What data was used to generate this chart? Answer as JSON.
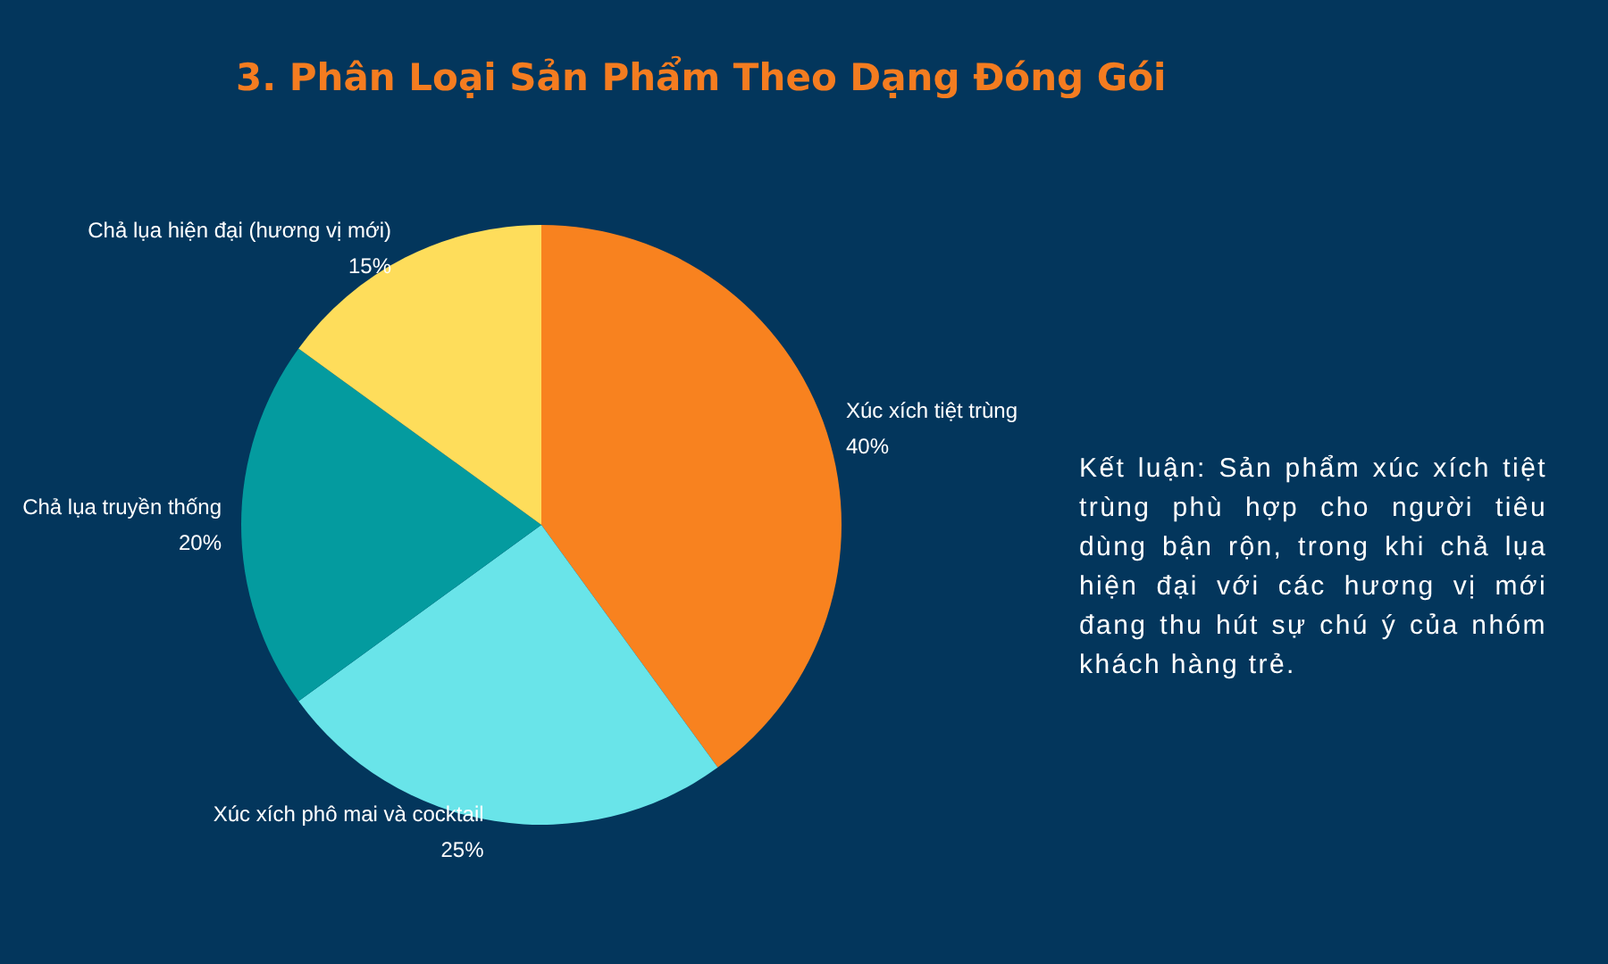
{
  "chart_data": {
    "type": "pie",
    "title": "3. Phân Loại Sản Phẩm Theo Dạng Đóng Gói",
    "categories": [
      "Xúc xích tiệt trùng",
      "Xúc xích phô mai và cocktail",
      "Chả lụa truyền thống",
      "Chả lụa hiện đại (hương vị mới)"
    ],
    "values": [
      40,
      25,
      20,
      15
    ],
    "value_labels": [
      "40%",
      "25%",
      "20%",
      "15%"
    ],
    "colors": [
      "#f8821f",
      "#69e4e9",
      "#049b9f",
      "#fedd5b"
    ],
    "annotations": [
      "Kết luận: Sản phẩm xúc xích tiệt trùng phù hợp cho người tiêu dùng bận rộn, trong khi chả lụa hiện đại với các hương vị mới đang thu hút sự chú ý của nhóm khách hàng trẻ."
    ],
    "legend": false
  }
}
